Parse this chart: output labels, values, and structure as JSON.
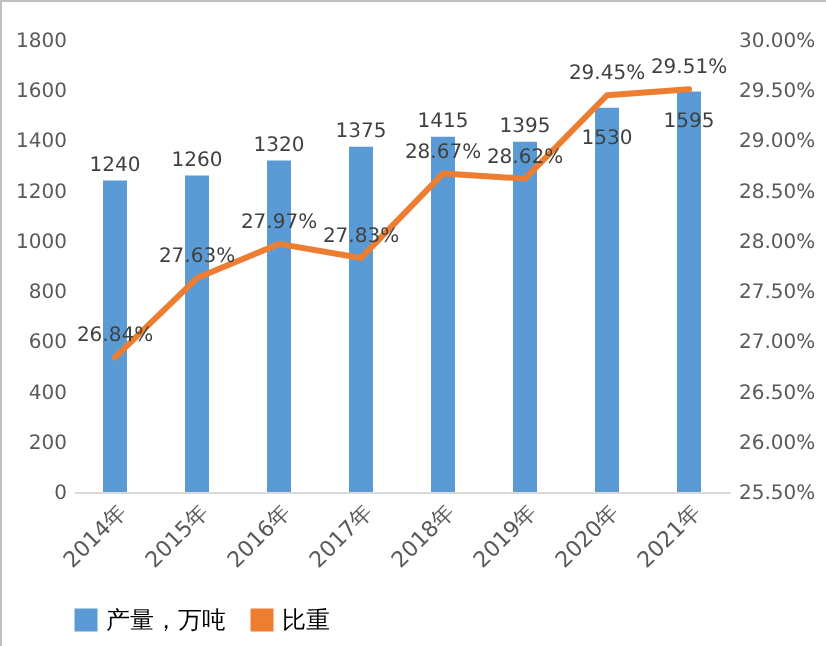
{
  "chart_data": {
    "type": "bar",
    "categories": [
      "2014年",
      "2015年",
      "2016年",
      "2017年",
      "2018年",
      "2019年",
      "2020年",
      "2021年"
    ],
    "series": [
      {
        "name": "产量，万吨",
        "color": "#5b9bd5",
        "values": [
          1240,
          1260,
          1320,
          1375,
          1415,
          1395,
          1530,
          1595
        ],
        "value_labels": [
          "1240",
          "1260",
          "1320",
          "1375",
          "1415",
          "1395",
          "1530",
          "1595"
        ]
      },
      {
        "name": "比重",
        "type": "line",
        "axis": "y2",
        "color": "#ed7d31",
        "values": [
          26.84,
          27.63,
          27.97,
          27.83,
          28.67,
          28.62,
          29.45,
          29.51
        ],
        "value_labels": [
          "26.84%",
          "27.63%",
          "27.97%",
          "27.83%",
          "28.67%",
          "28.62%",
          "29.45%",
          "29.51%"
        ]
      }
    ],
    "ylim": [
      0,
      1800
    ],
    "yticks": [
      0,
      200,
      400,
      600,
      800,
      1000,
      1200,
      1400,
      1600,
      1800
    ],
    "y2lim": [
      25.5,
      30
    ],
    "y2ticks": [
      {
        "value": 25.5,
        "label": "25.50%"
      },
      {
        "value": 26,
        "label": "26.00%"
      },
      {
        "value": 26.5,
        "label": "26.50%"
      },
      {
        "value": 27,
        "label": "27.00%"
      },
      {
        "value": 27.5,
        "label": "27.50%"
      },
      {
        "value": 28,
        "label": "28.00%"
      },
      {
        "value": 28.5,
        "label": "28.50%"
      },
      {
        "value": 29,
        "label": "29.00%"
      },
      {
        "value": 29.5,
        "label": "29.50%"
      },
      {
        "value": 30,
        "label": "30.00%"
      }
    ],
    "grid": false,
    "legend": "bottom",
    "marker": "none",
    "line_style": "solid"
  }
}
